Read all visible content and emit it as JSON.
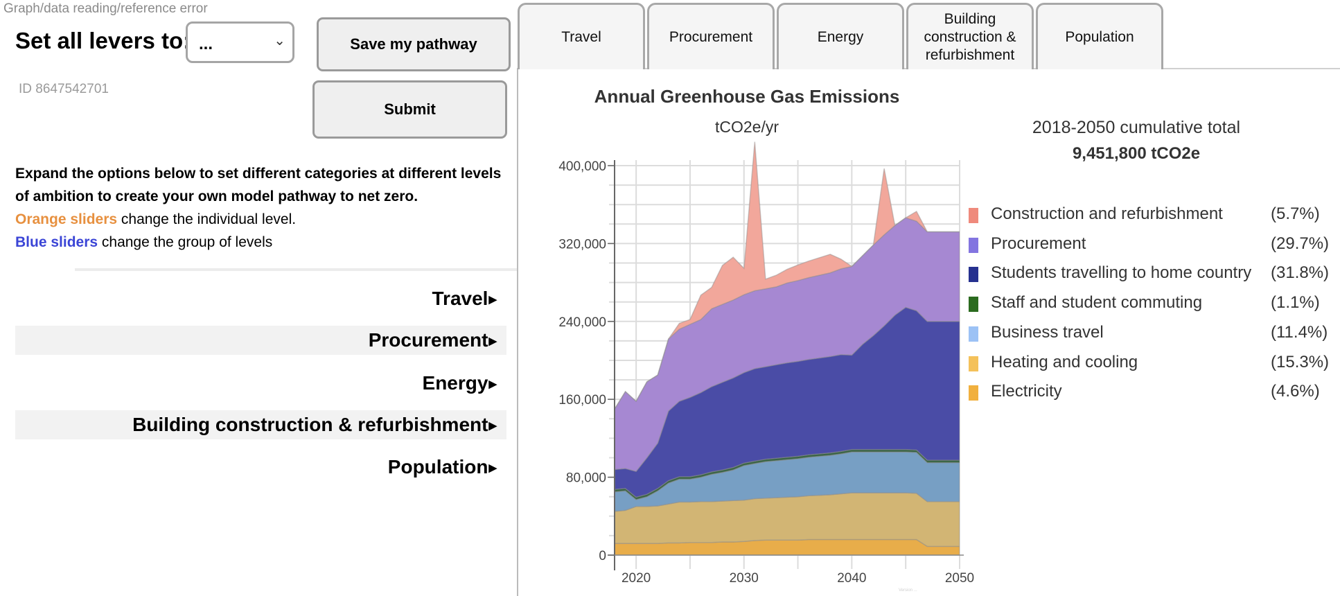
{
  "error_text": "Graph/data reading/reference error",
  "levers": {
    "label": "Set all levers to:",
    "selected": "...",
    "chevron_icon": "chevron-down-icon"
  },
  "buttons": {
    "save": "Save my pathway",
    "submit": "Submit"
  },
  "id_text": "ID 8647542701",
  "intro": {
    "line1": "Expand the options below to set different categories at different levels of ambition to create your own model pathway to net zero.",
    "orange_label": "Orange sliders",
    "orange_rest": " change the individual level.",
    "blue_label": "Blue sliders",
    "blue_rest": " change the group of levels",
    "orange_color": "#e7903f",
    "blue_color": "#3b45d6"
  },
  "categories": [
    {
      "label": "Travel",
      "icon": "triangle-right-icon"
    },
    {
      "label": "Procurement",
      "icon": "triangle-right-icon"
    },
    {
      "label": "Energy",
      "icon": "triangle-right-icon"
    },
    {
      "label": "Building construction & refurbishment",
      "icon": "triangle-right-icon"
    },
    {
      "label": "Population",
      "icon": "triangle-right-icon"
    }
  ],
  "tabs": [
    {
      "label": "Travel"
    },
    {
      "label": "Procurement"
    },
    {
      "label": "Energy"
    },
    {
      "label": "Building construction & refurbishment"
    },
    {
      "label": "Population"
    }
  ],
  "summary": {
    "label": "2018-2050 cumulative total",
    "value": "9,451,800 tCO2e"
  },
  "legend": [
    {
      "label": "Construction and refurbishment",
      "pct": "(5.7%)",
      "color": "#ef8a7c"
    },
    {
      "label": "Procurement",
      "pct": "(29.7%)",
      "color": "#8375e0"
    },
    {
      "label": "Students travelling to home country",
      "pct": "(31.8%)",
      "color": "#26318f"
    },
    {
      "label": "Staff and student commuting",
      "pct": "(1.1%)",
      "color": "#2b6b1f"
    },
    {
      "label": "Business travel",
      "pct": "(11.4%)",
      "color": "#9cc2f5"
    },
    {
      "label": "Heating and cooling",
      "pct": "(15.3%)",
      "color": "#f4c15a"
    },
    {
      "label": "Electricity",
      "pct": "(4.6%)",
      "color": "#f1b03e"
    }
  ],
  "version_text": "Version ...",
  "chart_data": {
    "type": "area",
    "stacked": true,
    "title": "Annual Greenhouse Gas Emissions",
    "subtitle": "tCO2e/yr",
    "xlabel": "",
    "ylabel": "",
    "ylim": [
      0,
      400000
    ],
    "xlim": [
      2018,
      2050
    ],
    "yticks": [
      "0",
      "80,000",
      "160,000",
      "240,000",
      "320,000",
      "400,000"
    ],
    "ytick_values": [
      0,
      80000,
      160000,
      240000,
      320000,
      400000
    ],
    "xticks": [
      "2020",
      "2030",
      "2040",
      "2050"
    ],
    "xtick_values": [
      2020,
      2030,
      2040,
      2050
    ],
    "grid": true,
    "x": [
      2018,
      2019,
      2020,
      2021,
      2022,
      2023,
      2024,
      2025,
      2026,
      2027,
      2028,
      2029,
      2030,
      2031,
      2032,
      2033,
      2034,
      2035,
      2036,
      2037,
      2038,
      2039,
      2040,
      2041,
      2042,
      2043,
      2044,
      2045,
      2046,
      2047,
      2048,
      2049,
      2050
    ],
    "series": [
      {
        "name": "Electricity",
        "color": "#e8ad4a",
        "values": [
          12000,
          12000,
          12000,
          12000,
          12000,
          12500,
          12500,
          13000,
          13000,
          13000,
          13500,
          13500,
          14000,
          15000,
          15500,
          15500,
          15500,
          15500,
          16000,
          16000,
          16000,
          16000,
          16000,
          16000,
          16000,
          16000,
          16000,
          16000,
          16000,
          9000,
          9000,
          9000,
          9000
        ]
      },
      {
        "name": "Heating and cooling",
        "color": "#d2b574",
        "values": [
          33000,
          34000,
          38000,
          38000,
          38500,
          40000,
          42000,
          41500,
          42000,
          42000,
          42000,
          42500,
          42500,
          43000,
          43000,
          43500,
          44000,
          44500,
          45000,
          45500,
          46000,
          47000,
          48000,
          48000,
          48000,
          48000,
          48000,
          48000,
          47500,
          46000,
          46000,
          46000,
          46000
        ]
      },
      {
        "name": "Business travel",
        "color": "#779fc4",
        "values": [
          20000,
          20000,
          7000,
          10000,
          15500,
          21500,
          23500,
          23500,
          25000,
          28000,
          29500,
          31500,
          35500,
          36000,
          37500,
          38000,
          38500,
          39000,
          39500,
          40000,
          40500,
          41000,
          42000,
          42000,
          42000,
          42000,
          42000,
          42000,
          42000,
          40000,
          40000,
          40000,
          40000
        ]
      },
      {
        "name": "Staff and student commuting",
        "color": "#386445",
        "values": [
          2500,
          2500,
          2500,
          2500,
          2500,
          2500,
          2500,
          2500,
          2500,
          2500,
          2500,
          2500,
          2500,
          2500,
          2500,
          2500,
          2500,
          2500,
          2500,
          2500,
          2500,
          2500,
          2500,
          2500,
          2500,
          2500,
          2500,
          2500,
          2500,
          2500,
          2500,
          2500,
          2500
        ]
      },
      {
        "name": "Students travelling to home country",
        "color": "#4a4ca6",
        "values": [
          20500,
          20500,
          26500,
          37500,
          46500,
          71500,
          77500,
          81500,
          84500,
          87500,
          90000,
          92000,
          93000,
          95000,
          95000,
          96000,
          97000,
          97500,
          98000,
          98500,
          99000,
          99500,
          97000,
          108000,
          117000,
          127000,
          138000,
          146000,
          143000,
          142500,
          142500,
          142500,
          142500
        ]
      },
      {
        "name": "Procurement",
        "color": "#a688d2",
        "values": [
          62000,
          79000,
          72000,
          78000,
          70000,
          74000,
          74000,
          75000,
          75000,
          80000,
          80000,
          80000,
          80000,
          80000,
          80000,
          80000,
          82000,
          83000,
          84000,
          85000,
          86000,
          88000,
          91000,
          91000,
          93000,
          93500,
          92000,
          92000,
          92000,
          92000,
          92000,
          92000,
          92000
        ]
      },
      {
        "name": "Construction and refurbishment",
        "color": "#f2a79b",
        "values": [
          0,
          0,
          0,
          0,
          0,
          0,
          6000,
          5000,
          25000,
          22000,
          40000,
          44000,
          27000,
          153000,
          10000,
          12000,
          14000,
          16000,
          17000,
          18000,
          19000,
          10000,
          0,
          0,
          0,
          68000,
          0,
          0,
          10000,
          0,
          0,
          0,
          0
        ]
      }
    ]
  }
}
